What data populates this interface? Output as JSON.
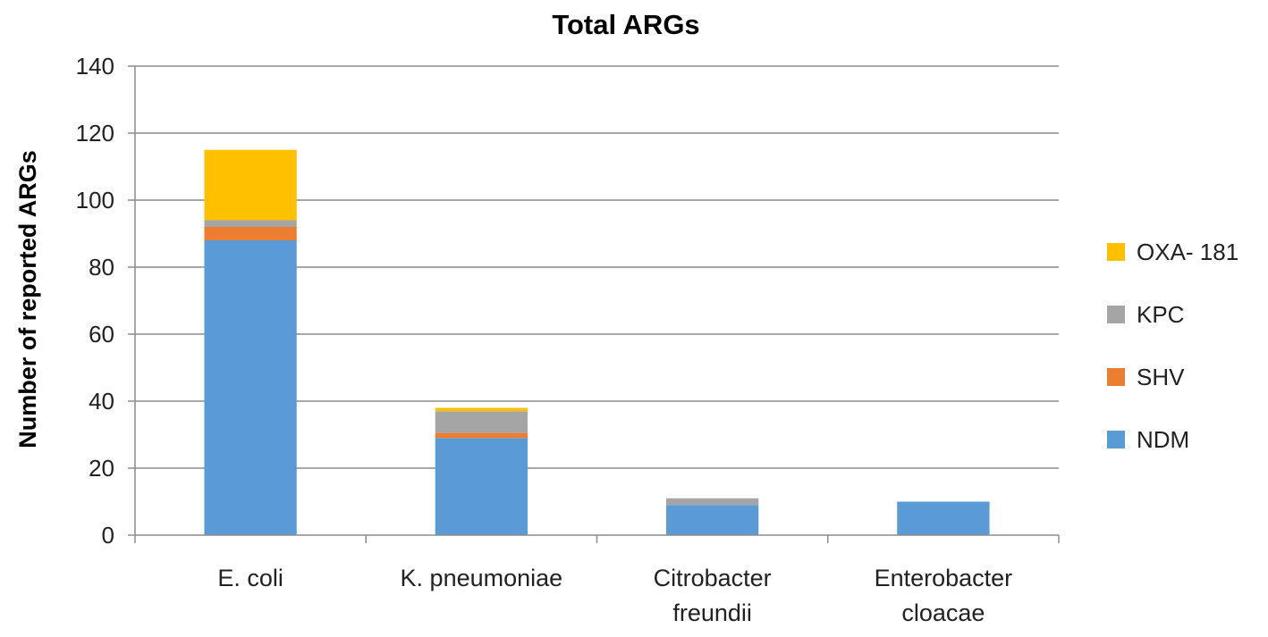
{
  "chart_data": {
    "type": "bar",
    "stacked": true,
    "title": "Total ARGs",
    "xlabel": "",
    "ylabel": "Number of  reported ARGs",
    "ylim": [
      0,
      140
    ],
    "yticks": [
      0,
      20,
      40,
      60,
      80,
      100,
      120,
      140
    ],
    "grid": true,
    "legend_position": "right",
    "categories": [
      [
        "E. coli"
      ],
      [
        "K. pneumoniae"
      ],
      [
        "Citrobacter",
        "freundii"
      ],
      [
        "Enterobacter",
        "cloacae"
      ]
    ],
    "series": [
      {
        "name": "NDM",
        "color": "#5B9BD5",
        "values": [
          88,
          29,
          9,
          10
        ]
      },
      {
        "name": "SHV",
        "color": "#ED7D31",
        "values": [
          4,
          1.5,
          0,
          0
        ]
      },
      {
        "name": "KPC",
        "color": "#A5A5A5",
        "values": [
          2,
          6.5,
          2,
          0
        ]
      },
      {
        "name": "OXA- 181",
        "color": "#FFC000",
        "values": [
          21,
          1,
          0,
          0
        ]
      }
    ],
    "legend_order": [
      "OXA- 181",
      "KPC",
      "SHV",
      "NDM"
    ]
  }
}
